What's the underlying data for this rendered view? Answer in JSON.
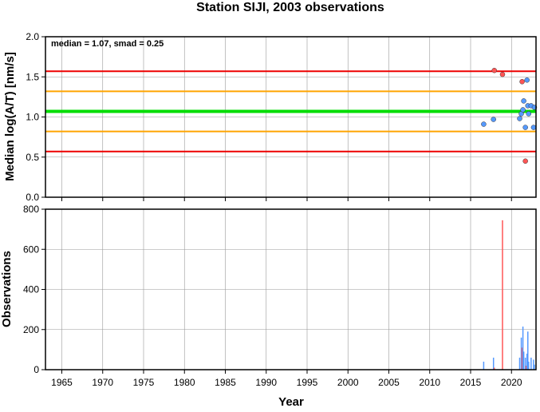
{
  "title": "Station SIJI, 2003 observations",
  "colors": {
    "median_line": "#00dd00",
    "one_smad_line": "#ffa500",
    "two_smad_line": "#ee0000",
    "point_normal": "#5599ff",
    "point_outlier": "#ff5555",
    "grid": "#999999"
  },
  "chart_data": [
    {
      "type": "scatter",
      "ylabel": "Median log(A/T) [nm/s]",
      "annotation": "median = 1.07, smad = 0.25",
      "xlim": [
        1963,
        2023
      ],
      "ylim": [
        0.0,
        2.0
      ],
      "yticks": [
        "0.0",
        "0.5",
        "1.0",
        "1.5",
        "2.0"
      ],
      "grid": true,
      "reference_lines": [
        {
          "kind": "median",
          "y": 1.07
        },
        {
          "kind": "plus_1_smad",
          "y": 1.32
        },
        {
          "kind": "minus_1_smad",
          "y": 0.82
        },
        {
          "kind": "plus_2_smad",
          "y": 1.57
        },
        {
          "kind": "minus_2_smad",
          "y": 0.57
        }
      ],
      "points": [
        {
          "x": 2016.6,
          "y": 0.91,
          "outlier": false
        },
        {
          "x": 2017.8,
          "y": 0.97,
          "outlier": false
        },
        {
          "x": 2017.9,
          "y": 1.58,
          "outlier": true
        },
        {
          "x": 2018.9,
          "y": 1.53,
          "outlier": true
        },
        {
          "x": 2021.0,
          "y": 0.98,
          "outlier": false
        },
        {
          "x": 2021.2,
          "y": 1.04,
          "outlier": false
        },
        {
          "x": 2021.3,
          "y": 1.44,
          "outlier": true
        },
        {
          "x": 2021.4,
          "y": 1.09,
          "outlier": false
        },
        {
          "x": 2021.5,
          "y": 1.2,
          "outlier": false
        },
        {
          "x": 2021.7,
          "y": 0.87,
          "outlier": false
        },
        {
          "x": 2021.9,
          "y": 1.46,
          "outlier": false
        },
        {
          "x": 2022.0,
          "y": 1.14,
          "outlier": false
        },
        {
          "x": 2022.1,
          "y": 1.04,
          "outlier": false
        },
        {
          "x": 2022.4,
          "y": 1.14,
          "outlier": false
        },
        {
          "x": 2022.7,
          "y": 0.87,
          "outlier": false
        },
        {
          "x": 2022.8,
          "y": 1.12,
          "outlier": false
        },
        {
          "x": 2021.7,
          "y": 0.45,
          "outlier": true
        }
      ]
    },
    {
      "type": "bar",
      "xlabel": "Year",
      "ylabel": "Observations",
      "xlim": [
        1963,
        2023
      ],
      "ylim": [
        0,
        800
      ],
      "xticks": [
        "1965",
        "1970",
        "1975",
        "1980",
        "1985",
        "1990",
        "1995",
        "2000",
        "2005",
        "2010",
        "2015",
        "2020"
      ],
      "yticks": [
        "0",
        "200",
        "400",
        "600",
        "800"
      ],
      "grid": true,
      "bars": [
        {
          "x": 2016.6,
          "value": 40,
          "outlier": false
        },
        {
          "x": 2017.8,
          "value": 60,
          "outlier": false
        },
        {
          "x": 2017.9,
          "value": 10,
          "outlier": true
        },
        {
          "x": 2018.9,
          "value": 745,
          "outlier": true
        },
        {
          "x": 2021.0,
          "value": 60,
          "outlier": false
        },
        {
          "x": 2021.2,
          "value": 160,
          "outlier": false
        },
        {
          "x": 2021.3,
          "value": 110,
          "outlier": true
        },
        {
          "x": 2021.4,
          "value": 215,
          "outlier": false
        },
        {
          "x": 2021.5,
          "value": 90,
          "outlier": false
        },
        {
          "x": 2021.7,
          "value": 60,
          "outlier": false
        },
        {
          "x": 2021.8,
          "value": 20,
          "outlier": true
        },
        {
          "x": 2021.9,
          "value": 80,
          "outlier": false
        },
        {
          "x": 2022.0,
          "value": 190,
          "outlier": false
        },
        {
          "x": 2022.1,
          "value": 40,
          "outlier": false
        },
        {
          "x": 2022.4,
          "value": 60,
          "outlier": false
        },
        {
          "x": 2022.7,
          "value": 50,
          "outlier": false
        },
        {
          "x": 2022.8,
          "value": 25,
          "outlier": false
        }
      ]
    }
  ]
}
